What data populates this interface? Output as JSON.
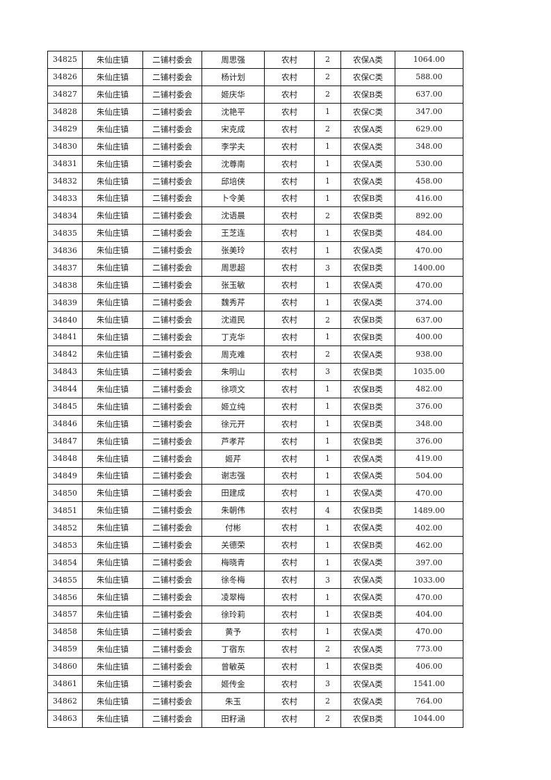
{
  "table": {
    "rows": [
      [
        "34825",
        "朱仙庄镇",
        "二铺村委会",
        "周思强",
        "农村",
        "2",
        "农保A类",
        "1064.00"
      ],
      [
        "34826",
        "朱仙庄镇",
        "二铺村委会",
        "杨计划",
        "农村",
        "2",
        "农保C类",
        "588.00"
      ],
      [
        "34827",
        "朱仙庄镇",
        "二铺村委会",
        "姬庆华",
        "农村",
        "2",
        "农保B类",
        "637.00"
      ],
      [
        "34828",
        "朱仙庄镇",
        "二铺村委会",
        "沈艳平",
        "农村",
        "1",
        "农保C类",
        "347.00"
      ],
      [
        "34829",
        "朱仙庄镇",
        "二铺村委会",
        "宋克成",
        "农村",
        "2",
        "农保A类",
        "629.00"
      ],
      [
        "34830",
        "朱仙庄镇",
        "二铺村委会",
        "李学夫",
        "农村",
        "1",
        "农保A类",
        "348.00"
      ],
      [
        "34831",
        "朱仙庄镇",
        "二铺村委会",
        "沈尊南",
        "农村",
        "1",
        "农保A类",
        "530.00"
      ],
      [
        "34832",
        "朱仙庄镇",
        "二铺村委会",
        "邱培侠",
        "农村",
        "1",
        "农保A类",
        "458.00"
      ],
      [
        "34833",
        "朱仙庄镇",
        "二铺村委会",
        "卜令美",
        "农村",
        "1",
        "农保B类",
        "416.00"
      ],
      [
        "34834",
        "朱仙庄镇",
        "二铺村委会",
        "沈语晨",
        "农村",
        "2",
        "农保B类",
        "892.00"
      ],
      [
        "34835",
        "朱仙庄镇",
        "二铺村委会",
        "王芝连",
        "农村",
        "1",
        "农保B类",
        "484.00"
      ],
      [
        "34836",
        "朱仙庄镇",
        "二铺村委会",
        "张美玲",
        "农村",
        "1",
        "农保A类",
        "470.00"
      ],
      [
        "34837",
        "朱仙庄镇",
        "二铺村委会",
        "周思超",
        "农村",
        "3",
        "农保B类",
        "1400.00"
      ],
      [
        "34838",
        "朱仙庄镇",
        "二铺村委会",
        "张玉敏",
        "农村",
        "1",
        "农保A类",
        "470.00"
      ],
      [
        "34839",
        "朱仙庄镇",
        "二铺村委会",
        "魏秀芹",
        "农村",
        "1",
        "农保A类",
        "374.00"
      ],
      [
        "34840",
        "朱仙庄镇",
        "二铺村委会",
        "沈道民",
        "农村",
        "2",
        "农保B类",
        "637.00"
      ],
      [
        "34841",
        "朱仙庄镇",
        "二铺村委会",
        "丁克华",
        "农村",
        "1",
        "农保B类",
        "400.00"
      ],
      [
        "34842",
        "朱仙庄镇",
        "二铺村委会",
        "周克难",
        "农村",
        "2",
        "农保A类",
        "938.00"
      ],
      [
        "34843",
        "朱仙庄镇",
        "二铺村委会",
        "朱明山",
        "农村",
        "3",
        "农保B类",
        "1035.00"
      ],
      [
        "34844",
        "朱仙庄镇",
        "二铺村委会",
        "徐项文",
        "农村",
        "1",
        "农保B类",
        "482.00"
      ],
      [
        "34845",
        "朱仙庄镇",
        "二铺村委会",
        "姬立纯",
        "农村",
        "1",
        "农保B类",
        "376.00"
      ],
      [
        "34846",
        "朱仙庄镇",
        "二铺村委会",
        "徐元开",
        "农村",
        "1",
        "农保B类",
        "348.00"
      ],
      [
        "34847",
        "朱仙庄镇",
        "二铺村委会",
        "芦孝芹",
        "农村",
        "1",
        "农保B类",
        "376.00"
      ],
      [
        "34848",
        "朱仙庄镇",
        "二铺村委会",
        "姬芹",
        "农村",
        "1",
        "农保A类",
        "419.00"
      ],
      [
        "34849",
        "朱仙庄镇",
        "二铺村委会",
        "谢志强",
        "农村",
        "1",
        "农保A类",
        "504.00"
      ],
      [
        "34850",
        "朱仙庄镇",
        "二铺村委会",
        "田建成",
        "农村",
        "1",
        "农保A类",
        "470.00"
      ],
      [
        "34851",
        "朱仙庄镇",
        "二铺村委会",
        "朱朝伟",
        "农村",
        "4",
        "农保B类",
        "1489.00"
      ],
      [
        "34852",
        "朱仙庄镇",
        "二铺村委会",
        "付彬",
        "农村",
        "1",
        "农保A类",
        "402.00"
      ],
      [
        "34853",
        "朱仙庄镇",
        "二铺村委会",
        "关德荣",
        "农村",
        "1",
        "农保B类",
        "462.00"
      ],
      [
        "34854",
        "朱仙庄镇",
        "二铺村委会",
        "梅晓青",
        "农村",
        "1",
        "农保A类",
        "397.00"
      ],
      [
        "34855",
        "朱仙庄镇",
        "二铺村委会",
        "徐冬梅",
        "农村",
        "3",
        "农保A类",
        "1033.00"
      ],
      [
        "34856",
        "朱仙庄镇",
        "二铺村委会",
        "凌翠梅",
        "农村",
        "1",
        "农保A类",
        "470.00"
      ],
      [
        "34857",
        "朱仙庄镇",
        "二铺村委会",
        "徐玲莉",
        "农村",
        "1",
        "农保B类",
        "404.00"
      ],
      [
        "34858",
        "朱仙庄镇",
        "二铺村委会",
        "黄予",
        "农村",
        "1",
        "农保A类",
        "470.00"
      ],
      [
        "34859",
        "朱仙庄镇",
        "二铺村委会",
        "丁宿东",
        "农村",
        "2",
        "农保A类",
        "773.00"
      ],
      [
        "34860",
        "朱仙庄镇",
        "二铺村委会",
        "曾敏英",
        "农村",
        "1",
        "农保B类",
        "406.00"
      ],
      [
        "34861",
        "朱仙庄镇",
        "二铺村委会",
        "姬传金",
        "农村",
        "3",
        "农保A类",
        "1541.00"
      ],
      [
        "34862",
        "朱仙庄镇",
        "二铺村委会",
        "朱玉",
        "农村",
        "2",
        "农保A类",
        "764.00"
      ],
      [
        "34863",
        "朱仙庄镇",
        "二铺村委会",
        "田籽涵",
        "农村",
        "2",
        "农保B类",
        "1044.00"
      ]
    ]
  }
}
